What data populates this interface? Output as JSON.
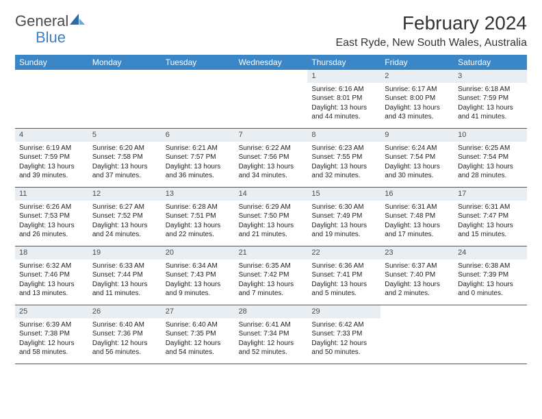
{
  "brand": {
    "part1": "General",
    "part2": "Blue"
  },
  "title": "February 2024",
  "location": "East Ryde, New South Wales, Australia",
  "colors": {
    "header_bg": "#3b86c7",
    "daynum_bg": "#e9eef3",
    "rule": "#2f5d8a",
    "brand_blue": "#3b7fc4"
  },
  "daysOfWeek": [
    "Sunday",
    "Monday",
    "Tuesday",
    "Wednesday",
    "Thursday",
    "Friday",
    "Saturday"
  ],
  "startOffset": 4,
  "daysInMonth": 29,
  "days": {
    "1": {
      "sunrise": "6:16 AM",
      "sunset": "8:01 PM",
      "daylight": "13 hours and 44 minutes."
    },
    "2": {
      "sunrise": "6:17 AM",
      "sunset": "8:00 PM",
      "daylight": "13 hours and 43 minutes."
    },
    "3": {
      "sunrise": "6:18 AM",
      "sunset": "7:59 PM",
      "daylight": "13 hours and 41 minutes."
    },
    "4": {
      "sunrise": "6:19 AM",
      "sunset": "7:59 PM",
      "daylight": "13 hours and 39 minutes."
    },
    "5": {
      "sunrise": "6:20 AM",
      "sunset": "7:58 PM",
      "daylight": "13 hours and 37 minutes."
    },
    "6": {
      "sunrise": "6:21 AM",
      "sunset": "7:57 PM",
      "daylight": "13 hours and 36 minutes."
    },
    "7": {
      "sunrise": "6:22 AM",
      "sunset": "7:56 PM",
      "daylight": "13 hours and 34 minutes."
    },
    "8": {
      "sunrise": "6:23 AM",
      "sunset": "7:55 PM",
      "daylight": "13 hours and 32 minutes."
    },
    "9": {
      "sunrise": "6:24 AM",
      "sunset": "7:54 PM",
      "daylight": "13 hours and 30 minutes."
    },
    "10": {
      "sunrise": "6:25 AM",
      "sunset": "7:54 PM",
      "daylight": "13 hours and 28 minutes."
    },
    "11": {
      "sunrise": "6:26 AM",
      "sunset": "7:53 PM",
      "daylight": "13 hours and 26 minutes."
    },
    "12": {
      "sunrise": "6:27 AM",
      "sunset": "7:52 PM",
      "daylight": "13 hours and 24 minutes."
    },
    "13": {
      "sunrise": "6:28 AM",
      "sunset": "7:51 PM",
      "daylight": "13 hours and 22 minutes."
    },
    "14": {
      "sunrise": "6:29 AM",
      "sunset": "7:50 PM",
      "daylight": "13 hours and 21 minutes."
    },
    "15": {
      "sunrise": "6:30 AM",
      "sunset": "7:49 PM",
      "daylight": "13 hours and 19 minutes."
    },
    "16": {
      "sunrise": "6:31 AM",
      "sunset": "7:48 PM",
      "daylight": "13 hours and 17 minutes."
    },
    "17": {
      "sunrise": "6:31 AM",
      "sunset": "7:47 PM",
      "daylight": "13 hours and 15 minutes."
    },
    "18": {
      "sunrise": "6:32 AM",
      "sunset": "7:46 PM",
      "daylight": "13 hours and 13 minutes."
    },
    "19": {
      "sunrise": "6:33 AM",
      "sunset": "7:44 PM",
      "daylight": "13 hours and 11 minutes."
    },
    "20": {
      "sunrise": "6:34 AM",
      "sunset": "7:43 PM",
      "daylight": "13 hours and 9 minutes."
    },
    "21": {
      "sunrise": "6:35 AM",
      "sunset": "7:42 PM",
      "daylight": "13 hours and 7 minutes."
    },
    "22": {
      "sunrise": "6:36 AM",
      "sunset": "7:41 PM",
      "daylight": "13 hours and 5 minutes."
    },
    "23": {
      "sunrise": "6:37 AM",
      "sunset": "7:40 PM",
      "daylight": "13 hours and 2 minutes."
    },
    "24": {
      "sunrise": "6:38 AM",
      "sunset": "7:39 PM",
      "daylight": "13 hours and 0 minutes."
    },
    "25": {
      "sunrise": "6:39 AM",
      "sunset": "7:38 PM",
      "daylight": "12 hours and 58 minutes."
    },
    "26": {
      "sunrise": "6:40 AM",
      "sunset": "7:36 PM",
      "daylight": "12 hours and 56 minutes."
    },
    "27": {
      "sunrise": "6:40 AM",
      "sunset": "7:35 PM",
      "daylight": "12 hours and 54 minutes."
    },
    "28": {
      "sunrise": "6:41 AM",
      "sunset": "7:34 PM",
      "daylight": "12 hours and 52 minutes."
    },
    "29": {
      "sunrise": "6:42 AM",
      "sunset": "7:33 PM",
      "daylight": "12 hours and 50 minutes."
    }
  },
  "labels": {
    "sunrise": "Sunrise:",
    "sunset": "Sunset:",
    "daylight": "Daylight:"
  }
}
